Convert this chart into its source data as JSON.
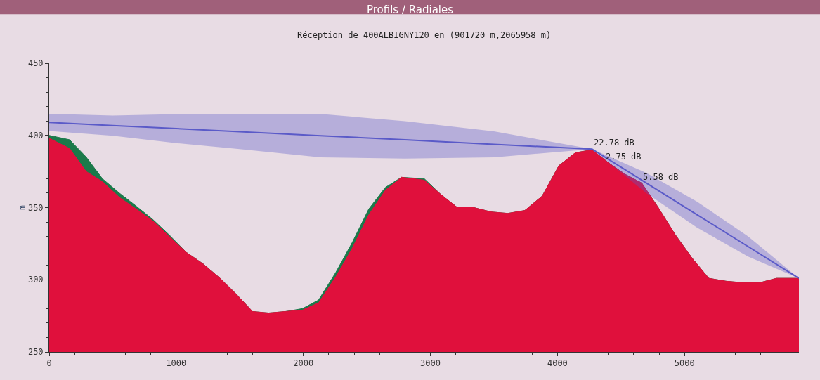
{
  "chart_data": {
    "type": "area",
    "title": "Profils / Radiales",
    "subtitle": "Réception de 400ALBIGNY120 en (901720 m,2065958 m)",
    "ylabel": "m",
    "x": [
      0,
      160,
      291,
      419,
      553,
      685,
      813,
      945,
      1079,
      1211,
      1345,
      1472,
      1600,
      1727,
      1860,
      1993,
      2120,
      2255,
      2386,
      2515,
      2646,
      2773,
      2952,
      3083,
      3213,
      3343,
      3478,
      3609,
      3743,
      3880,
      4011,
      4141,
      4272,
      4402,
      4533,
      4663,
      4793,
      4928,
      5059,
      5191,
      5326,
      5461,
      5593,
      5724,
      5900
    ],
    "series": [
      {
        "color": "#1a7a4a",
        "values": [
          400,
          397,
          385,
          370,
          360,
          351,
          342,
          331,
          319,
          311,
          301,
          290,
          278,
          277,
          278,
          280,
          286,
          305,
          326,
          349,
          364,
          371,
          370,
          359,
          350,
          350,
          347,
          346,
          348,
          358,
          379,
          388,
          390,
          381,
          373,
          367,
          350,
          331,
          315,
          301,
          299,
          298,
          298,
          301,
          301
        ]
      },
      {
        "color": "#e0103c",
        "values": [
          398,
          391,
          375,
          368,
          357,
          349,
          341,
          330,
          319,
          311,
          301,
          290,
          278,
          277,
          278,
          279,
          284,
          302,
          322,
          345,
          362,
          371,
          369,
          359,
          350,
          350,
          347,
          346,
          348,
          358,
          379,
          388,
          390,
          381,
          373,
          367,
          350,
          331,
          315,
          301,
          299,
          298,
          298,
          301,
          301
        ]
      },
      {
        "type": "line",
        "color": "#5a5ac8",
        "x": [
          0,
          500,
          1000,
          1500,
          2136,
          2800,
          3500,
          4272,
          4700,
          5100,
          5500,
          5900
        ],
        "values": [
          409,
          406.8,
          404.7,
          402.5,
          399.8,
          396.9,
          393.8,
          390.5,
          367,
          345,
          323,
          301
        ],
        "lower": [
          403,
          399.8,
          394.7,
          390.5,
          384.8,
          383.9,
          384.8,
          390.5,
          360,
          336,
          316,
          301
        ],
        "upper": [
          415,
          413.8,
          414.7,
          414.5,
          414.8,
          409.9,
          402.8,
          390.5,
          374,
          354,
          330,
          301
        ]
      }
    ],
    "annotations": [
      {
        "text": "22.78 dB",
        "x": 4272,
        "y": 390.5
      },
      {
        "text": "2.75 dB",
        "x": 4402,
        "y": 381
      },
      {
        "text": "5.58 dB",
        "x": 4663,
        "y": 367
      }
    ],
    "xlim": [
      0,
      5900
    ],
    "xticks": [
      0,
      1000,
      2000,
      3000,
      4000,
      5000
    ],
    "ylim": [
      250,
      450
    ],
    "yticks": [
      250,
      300,
      350,
      400,
      450
    ],
    "grid": false
  }
}
